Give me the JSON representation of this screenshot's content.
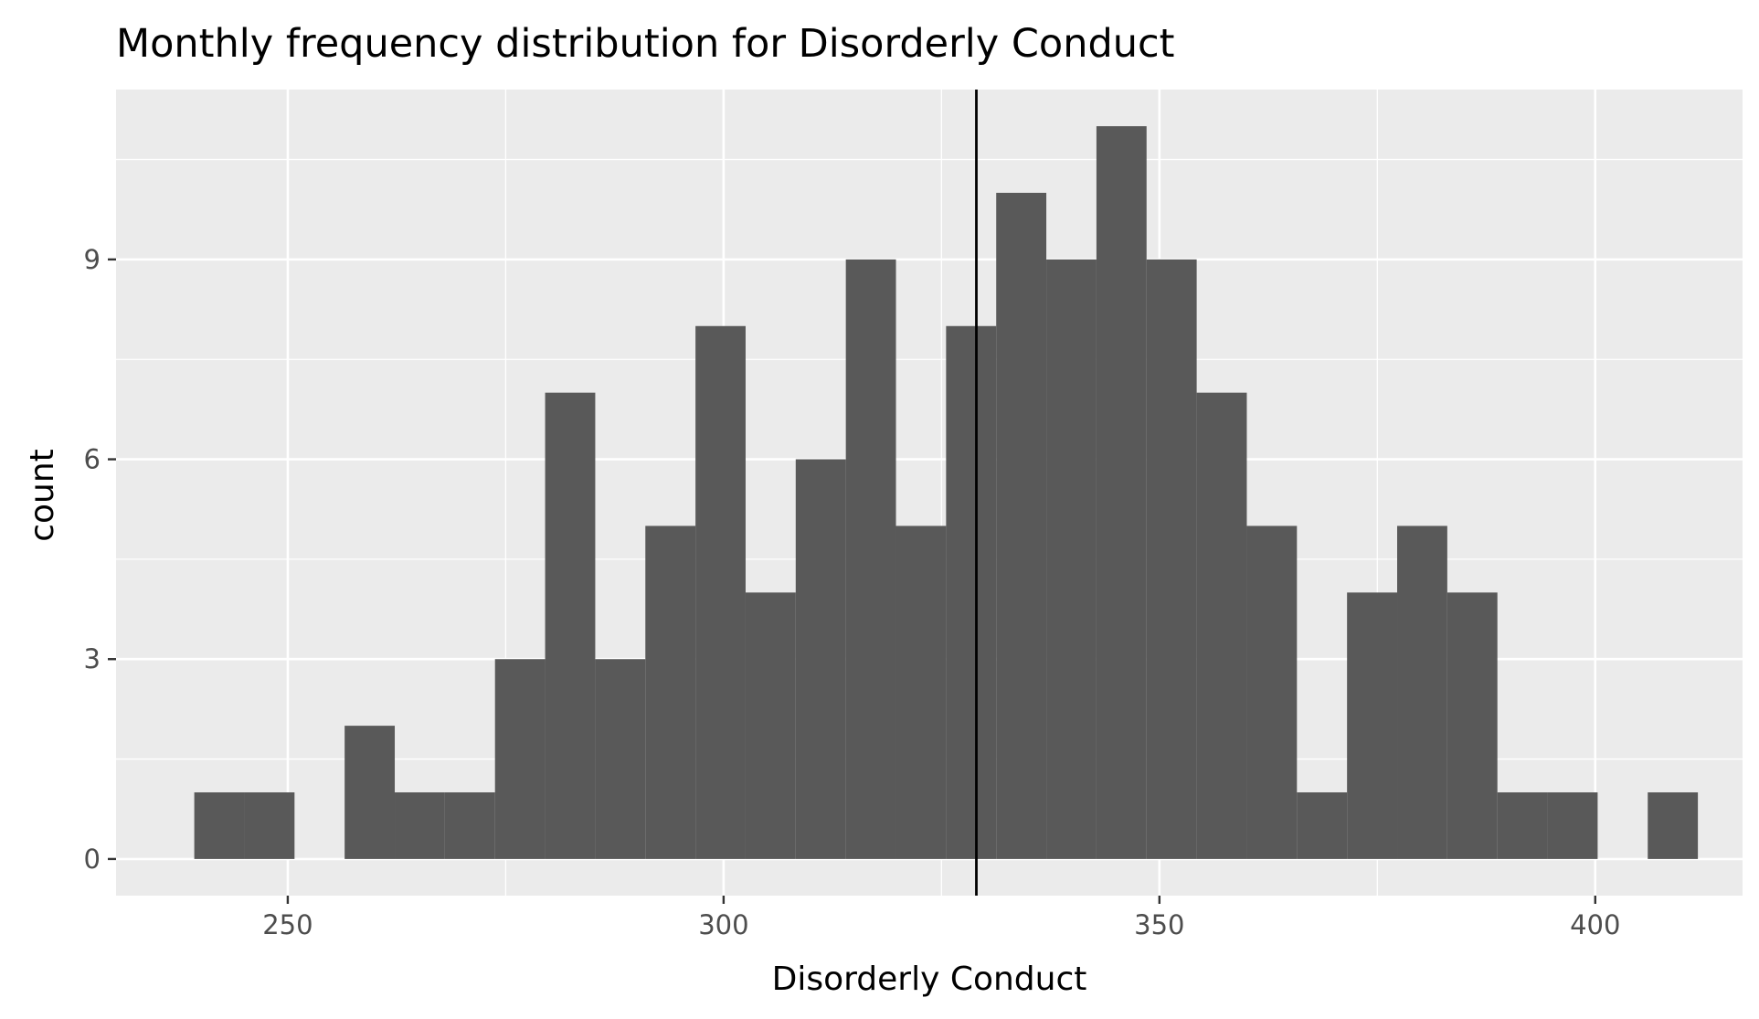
{
  "chart_data": {
    "type": "bar",
    "title": "Monthly frequency distribution for Disorderly Conduct",
    "xlabel": "Disorderly Conduct",
    "ylabel": "count",
    "xlim": [
      230.3,
      416.9
    ],
    "ylim": [
      -0.55,
      11.55
    ],
    "x_ticks": [
      250,
      300,
      350,
      400
    ],
    "y_ticks": [
      0,
      3,
      6,
      9
    ],
    "bin_width": 5.75,
    "bins": [
      {
        "x": 242.15,
        "count": 1
      },
      {
        "x": 247.9,
        "count": 1
      },
      {
        "x": 253.65,
        "count": 0
      },
      {
        "x": 259.4,
        "count": 2
      },
      {
        "x": 265.15,
        "count": 1
      },
      {
        "x": 270.9,
        "count": 1
      },
      {
        "x": 276.65,
        "count": 3
      },
      {
        "x": 282.4,
        "count": 7
      },
      {
        "x": 288.15,
        "count": 3
      },
      {
        "x": 293.9,
        "count": 5
      },
      {
        "x": 299.65,
        "count": 8
      },
      {
        "x": 305.4,
        "count": 4
      },
      {
        "x": 311.15,
        "count": 6
      },
      {
        "x": 316.9,
        "count": 9
      },
      {
        "x": 322.65,
        "count": 5
      },
      {
        "x": 328.4,
        "count": 8
      },
      {
        "x": 334.15,
        "count": 10
      },
      {
        "x": 339.9,
        "count": 9
      },
      {
        "x": 345.65,
        "count": 11
      },
      {
        "x": 351.4,
        "count": 9
      },
      {
        "x": 357.15,
        "count": 7
      },
      {
        "x": 362.9,
        "count": 5
      },
      {
        "x": 368.65,
        "count": 1
      },
      {
        "x": 374.4,
        "count": 4
      },
      {
        "x": 380.15,
        "count": 5
      },
      {
        "x": 385.9,
        "count": 4
      },
      {
        "x": 391.65,
        "count": 1
      },
      {
        "x": 397.4,
        "count": 1
      },
      {
        "x": 403.15,
        "count": 0
      },
      {
        "x": 408.9,
        "count": 1
      }
    ],
    "mean_line": 329.0,
    "grid": true,
    "colors": {
      "bar": "#595959",
      "panel": "#ebebeb",
      "grid": "#ffffff",
      "mean_line": "#000000"
    }
  }
}
